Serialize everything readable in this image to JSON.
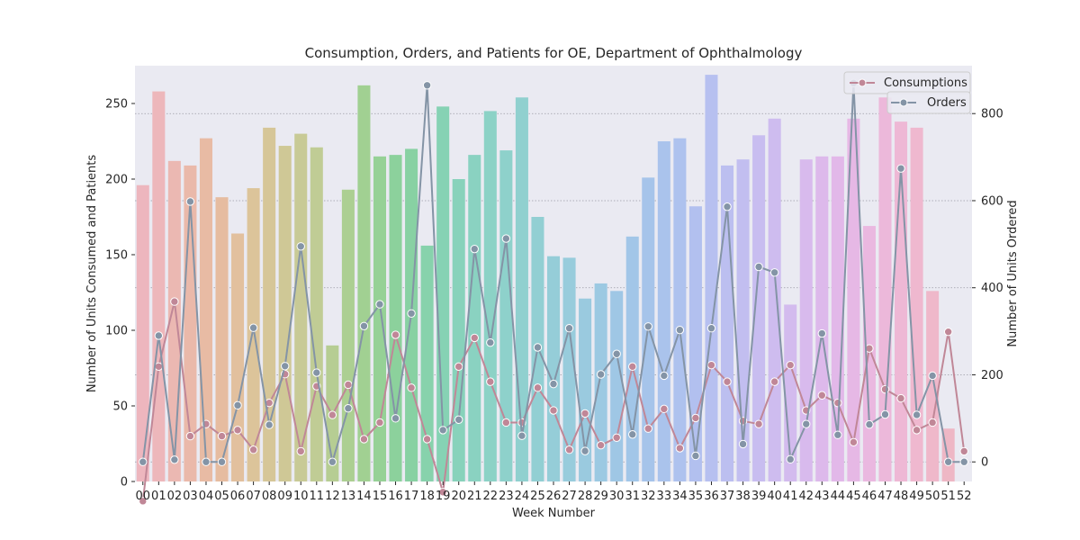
{
  "chart_data": {
    "type": "bar",
    "title": "Consumption, Orders, and Patients for OE, Department of Ophthalmology",
    "xlabel": "Week Number",
    "ylabel": "Number of Units Consumed and Patients",
    "y2label": "Number of Units Ordered",
    "categories": [
      "00",
      "01",
      "02",
      "03",
      "04",
      "05",
      "06",
      "07",
      "08",
      "09",
      "10",
      "11",
      "12",
      "13",
      "14",
      "15",
      "16",
      "17",
      "18",
      "19",
      "20",
      "21",
      "22",
      "23",
      "24",
      "25",
      "26",
      "27",
      "28",
      "29",
      "30",
      "31",
      "32",
      "33",
      "34",
      "35",
      "36",
      "37",
      "38",
      "39",
      "40",
      "41",
      "42",
      "43",
      "44",
      "45",
      "46",
      "47",
      "48",
      "49",
      "50",
      "51",
      "52"
    ],
    "ylim": [
      0,
      275
    ],
    "y2lim": [
      -45,
      910
    ],
    "yticks": [
      0,
      50,
      100,
      150,
      200,
      250
    ],
    "y2ticks": [
      0,
      200,
      400,
      600,
      800
    ],
    "grid": true,
    "bar_values": [
      196,
      258,
      212,
      209,
      227,
      188,
      164,
      194,
      234,
      222,
      230,
      221,
      90,
      193,
      262,
      215,
      216,
      220,
      156,
      248,
      200,
      216,
      245,
      219,
      254,
      175,
      149,
      148,
      121,
      131,
      126,
      162,
      201,
      225,
      227,
      182,
      269,
      209,
      213,
      229,
      240,
      117,
      213,
      215,
      215,
      240,
      169,
      254,
      238,
      234,
      126,
      35,
      0
    ],
    "series": [
      {
        "name": "Consumptions",
        "axis": "left",
        "color": "#c08797",
        "values": [
          -13,
          76,
          119,
          30,
          38,
          30,
          34,
          21,
          52,
          71,
          20,
          63,
          44,
          64,
          28,
          39,
          97,
          62,
          28,
          -7,
          76,
          95,
          66,
          39,
          39,
          62,
          47,
          21,
          45,
          24,
          29,
          76,
          35,
          48,
          22,
          42,
          77,
          66,
          40,
          38,
          66,
          77,
          47,
          57,
          52,
          26,
          88,
          61,
          55,
          34,
          39,
          99,
          20
        ]
      },
      {
        "name": "Orders",
        "axis": "right",
        "color": "#8494a6",
        "values": [
          0,
          290,
          5,
          598,
          0,
          0,
          130,
          308,
          85,
          220,
          495,
          205,
          0,
          123,
          312,
          362,
          100,
          341,
          865,
          73,
          97,
          489,
          274,
          513,
          60,
          263,
          179,
          307,
          25,
          201,
          248,
          63,
          311,
          198,
          303,
          14,
          307,
          586,
          41,
          448,
          435,
          6,
          87,
          295,
          62,
          870,
          86,
          109,
          674,
          108,
          198,
          0,
          0
        ]
      }
    ],
    "bar_colors": [
      "#edb6be",
      "#edb7bb",
      "#ebb8b2",
      "#eab9aa",
      "#e8bba4",
      "#e6bca0",
      "#e2c09e",
      "#dcc49a",
      "#d6c698",
      "#cfc896",
      "#c8ca96",
      "#c0cc95",
      "#b6cd93",
      "#accf92",
      "#a1d092",
      "#96d196",
      "#8cd19c",
      "#88d1a3",
      "#87d2ac",
      "#86d2b4",
      "#88d2bb",
      "#8ad2c1",
      "#8cd2c6",
      "#8ed1cb",
      "#90d0cf",
      "#92cfd3",
      "#95cdd8",
      "#98ccdc",
      "#9acadf",
      "#9cc9e2",
      "#9fc7e5",
      "#a2c6e8",
      "#a6c4ea",
      "#aac3ec",
      "#aec2ee",
      "#b2c0ef",
      "#b7c0f0",
      "#bcbff0",
      "#c2bef0",
      "#c8bdf0",
      "#cebcef",
      "#d3bbee",
      "#d8baed",
      "#ddb9eb",
      "#e2b8e9",
      "#e6b8e5",
      "#eab8e0",
      "#ecb8da",
      "#eeb8d5",
      "#efb8cf",
      "#efb8ca",
      "#eeb7c5",
      "#eeb7c1"
    ]
  }
}
